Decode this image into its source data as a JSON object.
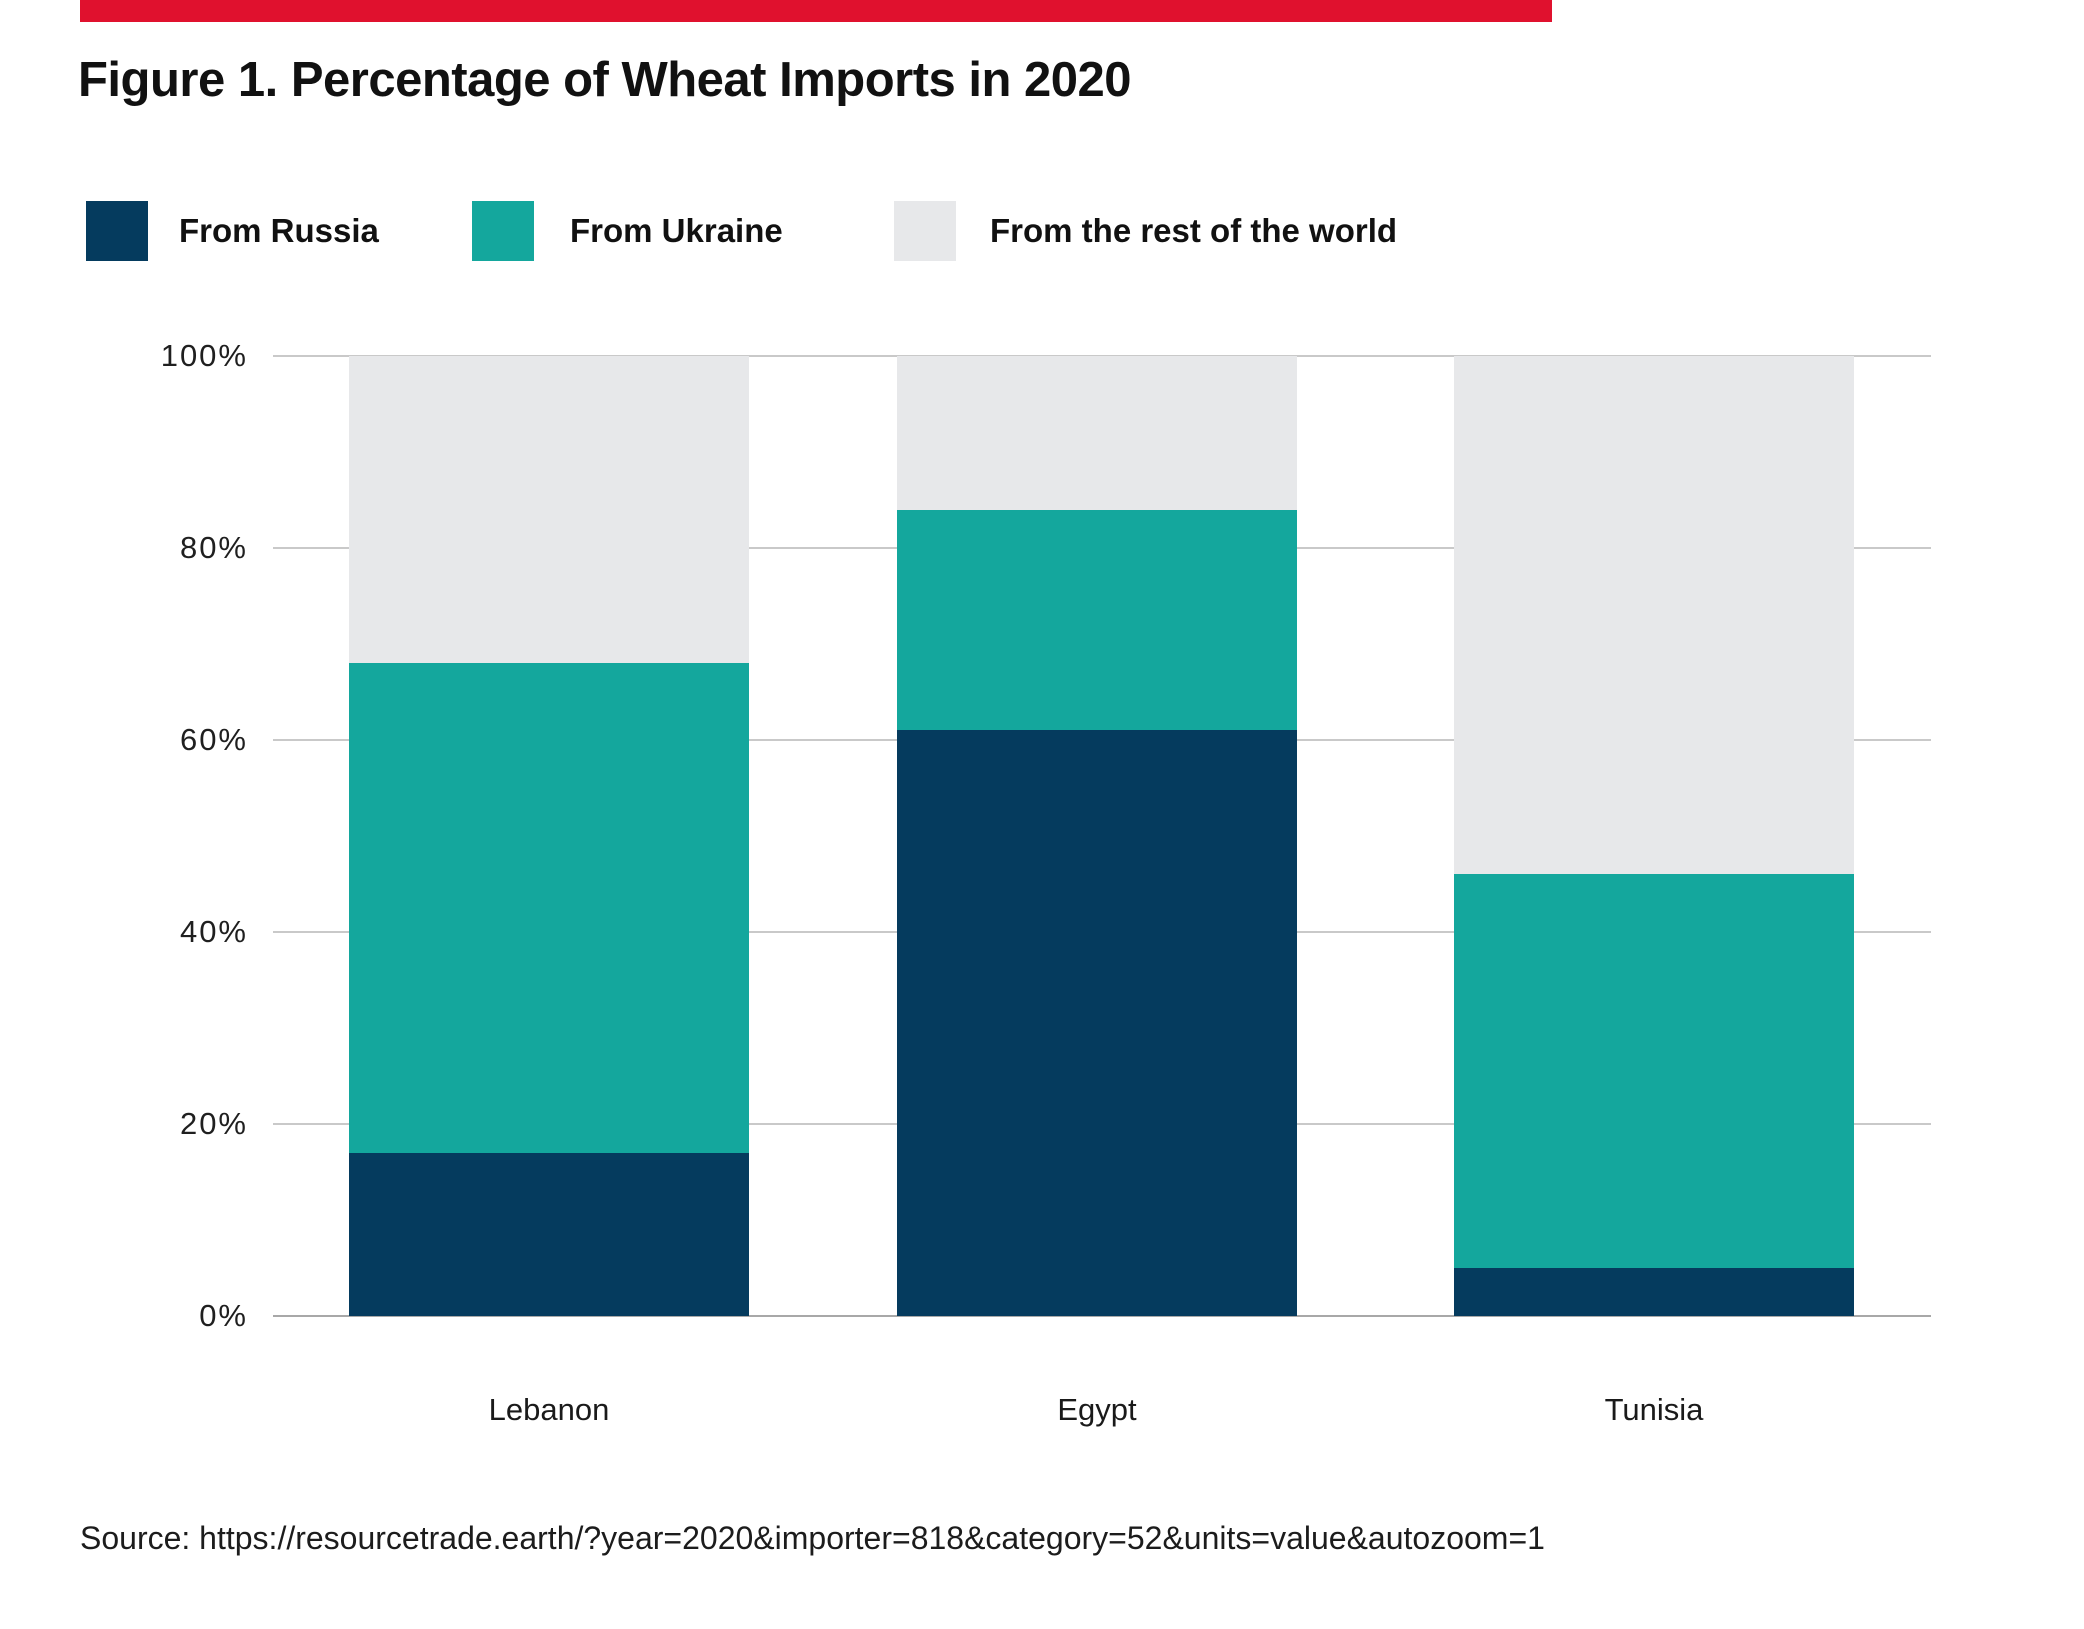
{
  "accent_bar_color": "#e0112e",
  "title": "Figure 1. Percentage of Wheat Imports in 2020",
  "source": "Source: https://resourcetrade.earth/?year=2020&importer=818&category=52&units=value&autozoom=1",
  "chart_data": {
    "type": "bar",
    "stacked": true,
    "unit": "%",
    "title": "Figure 1. Percentage of Wheat Imports in 2020",
    "categories": [
      "Lebanon",
      "Egypt",
      "Tunisia"
    ],
    "series": [
      {
        "name": "From Russia",
        "color": "#053b5e",
        "values": [
          17,
          61,
          5
        ]
      },
      {
        "name": "From Ukraine",
        "color": "#14a79d",
        "values": [
          51,
          23,
          41
        ]
      },
      {
        "name": "From the rest of the world",
        "color": "#e7e8ea",
        "values": [
          32,
          16,
          54
        ]
      }
    ],
    "y_axis": {
      "min": 0,
      "max": 100,
      "tick_step": 20,
      "tick_suffix": "%"
    },
    "ylim": [
      0,
      100
    ],
    "legend_position": "top",
    "grid": "horizontal"
  }
}
